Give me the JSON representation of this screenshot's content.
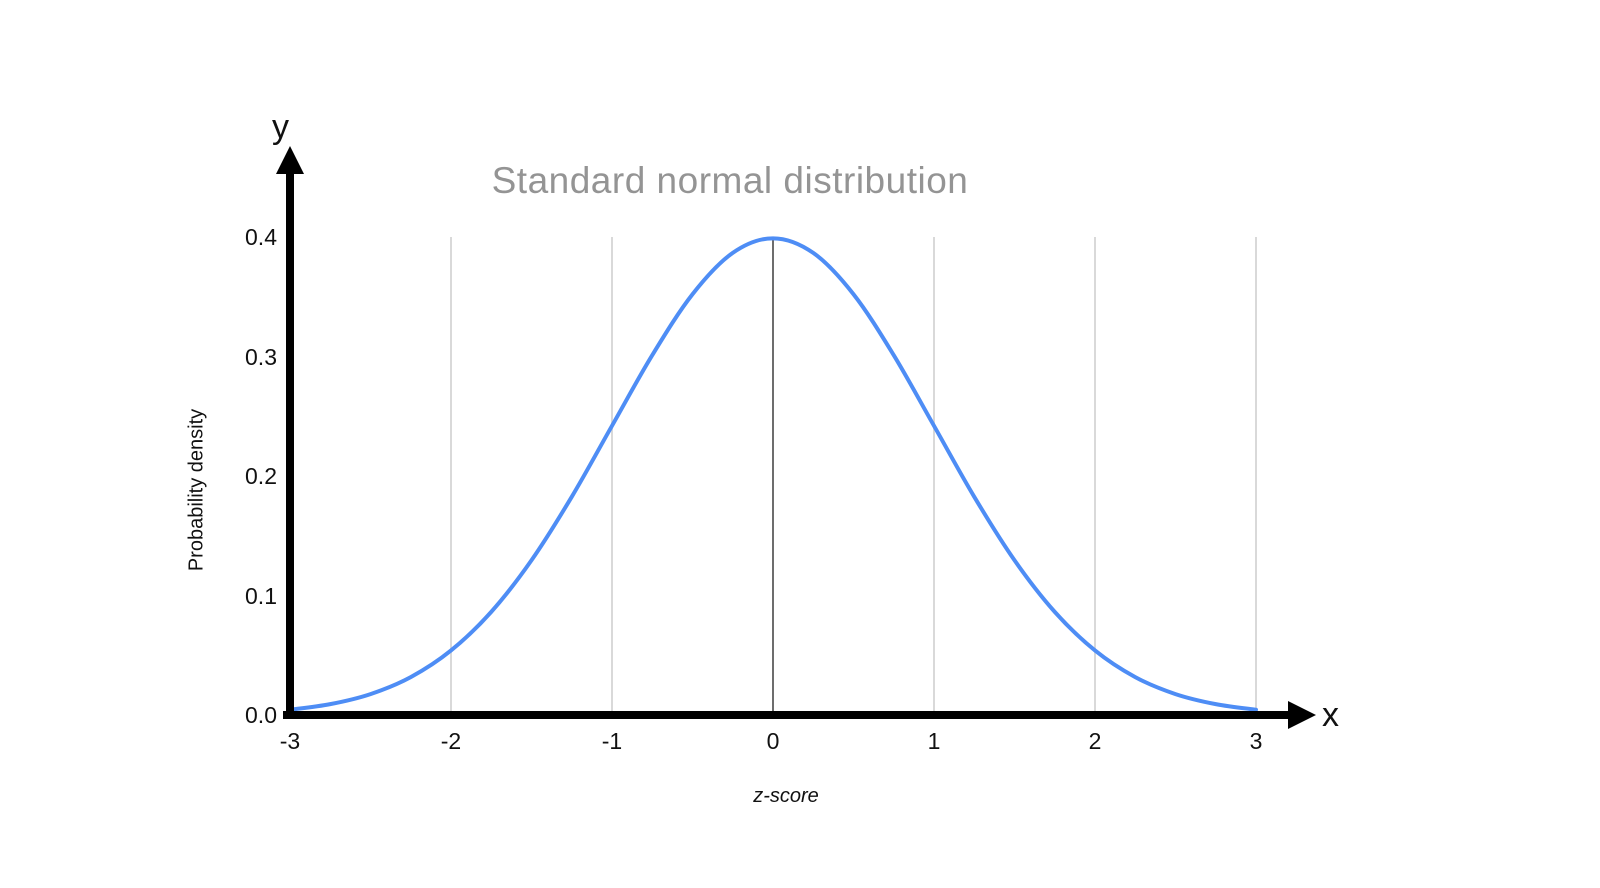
{
  "page": {
    "background": "#ffffff"
  },
  "chart_data": {
    "type": "line",
    "title": "Standard normal distribution",
    "xlabel": "z-score",
    "ylabel": "Probability density",
    "x_axis_letter": "x",
    "y_axis_letter": "y",
    "xlim": [
      -3,
      3
    ],
    "ylim": [
      0,
      0.4
    ],
    "x_ticks": [
      -3,
      -2,
      -1,
      0,
      1,
      2,
      3
    ],
    "x_tick_labels": [
      "-3",
      "-2",
      "-1",
      "0",
      "1",
      "2",
      "3"
    ],
    "y_ticks": [
      0.0,
      0.1,
      0.2,
      0.3,
      0.4
    ],
    "y_tick_labels": [
      "0.0",
      "0.1",
      "0.2",
      "0.3",
      "0.4"
    ],
    "grid": {
      "vertical_at": [
        -2,
        -1,
        1,
        2,
        3
      ],
      "center_line_at": 0
    },
    "legend": "none",
    "series": [
      {
        "name": "standard-normal-pdf",
        "x": [
          -3,
          -2.75,
          -2.5,
          -2.25,
          -2,
          -1.75,
          -1.5,
          -1.25,
          -1,
          -0.75,
          -0.5,
          -0.25,
          0,
          0.25,
          0.5,
          0.75,
          1,
          1.25,
          1.5,
          1.75,
          2,
          2.25,
          2.5,
          2.75,
          3
        ],
        "y": [
          0.0044,
          0.0091,
          0.0175,
          0.0317,
          0.054,
          0.0863,
          0.1295,
          0.1826,
          0.242,
          0.3011,
          0.3521,
          0.3867,
          0.3989,
          0.3867,
          0.3521,
          0.3011,
          0.242,
          0.1826,
          0.1295,
          0.0863,
          0.054,
          0.0317,
          0.0175,
          0.0091,
          0.0044
        ]
      }
    ],
    "colors": {
      "curve": "#4e8df5",
      "grid": "#d9d9d9",
      "center_line": "#3d3d3d",
      "axis": "#000000",
      "title": "#949494",
      "text": "#111111"
    }
  }
}
